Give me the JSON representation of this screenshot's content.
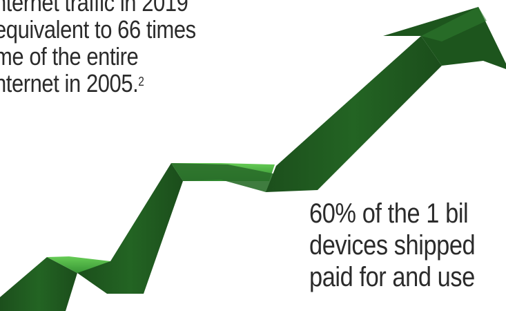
{
  "top_text": {
    "line1": "nternet traffic in 2019",
    "line2": "equivalent to 66 times",
    "line3": "me of the entire",
    "line4": "nternet in 2005.",
    "footnote": "2"
  },
  "bottom_text": {
    "line1": "60% of the 1 bil",
    "line2": "devices shipped",
    "line3": "paid for and use"
  },
  "colors": {
    "arrow_dark": "#1e5a1e",
    "arrow_mid": "#2e7d2e",
    "arrow_light": "#4cb84c",
    "text": "#2b2b2b"
  }
}
